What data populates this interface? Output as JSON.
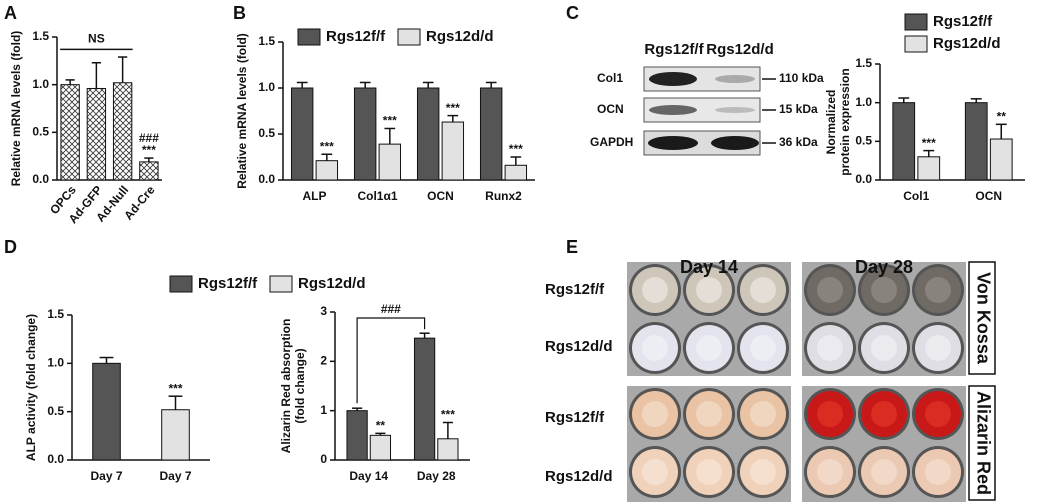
{
  "panel_labels": [
    "A",
    "B",
    "C",
    "D",
    "E"
  ],
  "chart_data": [
    {
      "type": "bar",
      "ylabel": "Relative mRNA levels (fold)",
      "categories": [
        "OPCs",
        "Ad-GFP",
        "Ad-Null",
        "Ad-Cre"
      ],
      "series": [
        {
          "color": "#ffffff",
          "hatch": true,
          "values": [
            1.0,
            0.96,
            1.02,
            0.19
          ],
          "errors": [
            0.05,
            0.27,
            0.27,
            0.04
          ],
          "significance": [
            null,
            null,
            null,
            "***"
          ],
          "hash": [
            null,
            null,
            null,
            "###"
          ]
        }
      ],
      "bracket_label": "NS",
      "ylim": [
        0,
        1.5
      ],
      "yticks": [
        {
          "value": 0,
          "label": "0.0"
        },
        {
          "value": 0.5,
          "label": "0.5"
        },
        {
          "value": 1,
          "label": "1.0"
        },
        {
          "value": 1.5,
          "label": "1.5"
        }
      ]
    },
    {
      "type": "bar",
      "ylabel": "Relative mRNA levels (fold)",
      "categories": [
        "ALP",
        "Col1α1",
        "OCN",
        "Runx2"
      ],
      "series": [
        {
          "name": "Rgs12f/f",
          "color": "#555555",
          "values": [
            1.0,
            1.0,
            1.0,
            1.0
          ],
          "errors": [
            0.06,
            0.06,
            0.06,
            0.06
          ]
        },
        {
          "name": "Rgs12d/d",
          "color": "#e2e2e2",
          "values": [
            0.21,
            0.39,
            0.63,
            0.16
          ],
          "errors": [
            0.07,
            0.17,
            0.07,
            0.09
          ],
          "significance": [
            "***",
            "***",
            "***",
            "***"
          ]
        }
      ],
      "ylim": [
        0,
        1.5
      ],
      "yticks": [
        {
          "value": 0,
          "label": "0.0"
        },
        {
          "value": 0.5,
          "label": "0.5"
        },
        {
          "value": 1,
          "label": "1.0"
        },
        {
          "value": 1.5,
          "label": "1.5"
        }
      ]
    },
    {
      "type": "bar",
      "ylabel": [
        "Normalized",
        "protein expression"
      ],
      "categories": [
        "Col1",
        "OCN"
      ],
      "series": [
        {
          "name": "Rgs12f/f",
          "color": "#555555",
          "values": [
            1.0,
            1.0
          ],
          "errors": [
            0.06,
            0.05
          ]
        },
        {
          "name": "Rgs12d/d",
          "color": "#e2e2e2",
          "values": [
            0.3,
            0.53
          ],
          "errors": [
            0.08,
            0.19
          ],
          "significance": [
            "***",
            "**"
          ]
        }
      ],
      "ylim": [
        0,
        1.5
      ],
      "yticks": [
        {
          "value": 0,
          "label": "0.0"
        },
        {
          "value": 0.5,
          "label": "0.5"
        },
        {
          "value": 1,
          "label": "1.0"
        },
        {
          "value": 1.5,
          "label": "1.5"
        }
      ]
    },
    {
      "type": "bar",
      "ylabel": "ALP activity (fold change)",
      "categories": [
        "Day 7",
        "Day 7"
      ],
      "series": [
        {
          "colors": [
            "#555555",
            "#e2e2e2"
          ],
          "values": [
            1.0,
            0.52
          ],
          "errors": [
            0.06,
            0.14
          ],
          "significance": [
            null,
            "***"
          ]
        }
      ],
      "ylim": [
        0,
        1.5
      ],
      "yticks": [
        {
          "value": 0,
          "label": "0.0"
        },
        {
          "value": 0.5,
          "label": "0.5"
        },
        {
          "value": 1,
          "label": "1.0"
        },
        {
          "value": 1.5,
          "label": "1.5"
        }
      ]
    },
    {
      "type": "bar",
      "ylabel": [
        "Alizarin Red absorption",
        "(fold change)"
      ],
      "categories": [
        "Day 14",
        "Day 28"
      ],
      "series": [
        {
          "name": "Rgs12f/f",
          "color": "#555555",
          "values": [
            1.0,
            2.47
          ],
          "errors": [
            0.05,
            0.1
          ]
        },
        {
          "name": "Rgs12d/d",
          "color": "#e2e2e2",
          "values": [
            0.5,
            0.43
          ],
          "errors": [
            0.04,
            0.33
          ],
          "significance": [
            "**",
            "***"
          ]
        }
      ],
      "bracket_label": "###",
      "ylim": [
        0,
        3
      ],
      "yticks": [
        0,
        1,
        2,
        3
      ]
    }
  ],
  "blot": {
    "lanes": [
      "Rgs12f/f",
      "Rgs12d/d"
    ],
    "rows": [
      {
        "label": "Col1",
        "size": "110 kDa"
      },
      {
        "label": "OCN",
        "size": "15 kDa"
      },
      {
        "label": "GAPDH",
        "size": "36 kDa"
      }
    ]
  },
  "panel_e": {
    "columns": [
      "Day 14",
      "Day 28"
    ],
    "stains": [
      "Von Kossa",
      "Alizarin Red"
    ],
    "rows": [
      "Rgs12f/f",
      "Rgs12d/d",
      "Rgs12f/f",
      "Rgs12d/d"
    ]
  }
}
